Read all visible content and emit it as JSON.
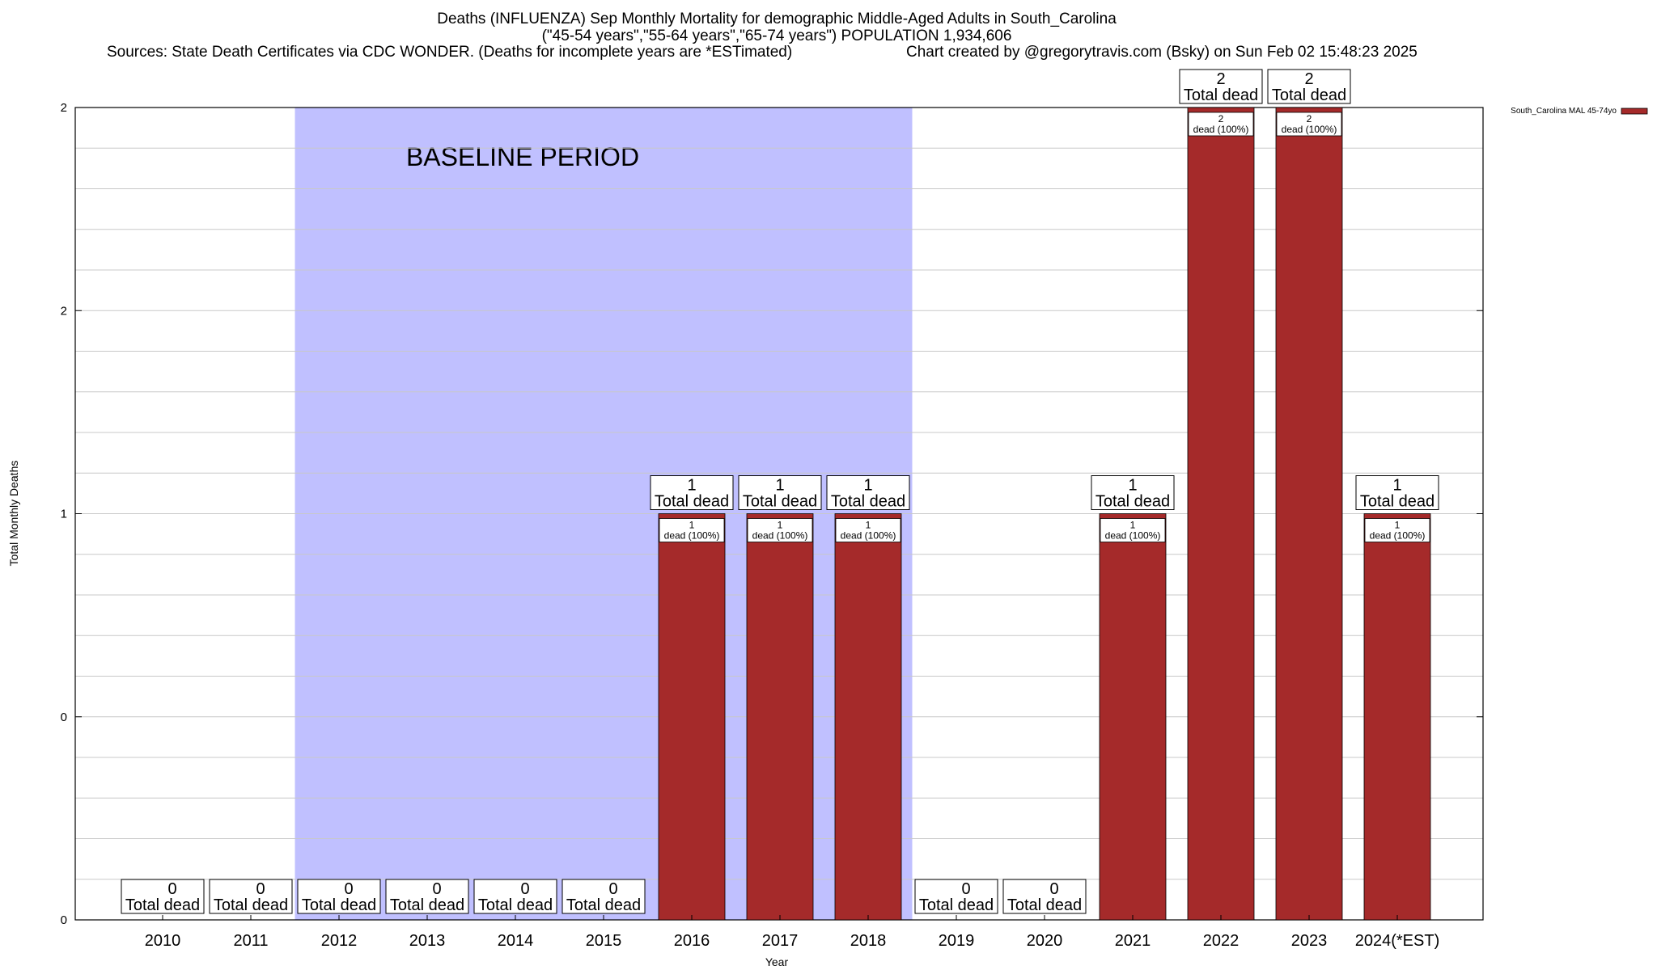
{
  "header": {
    "title_line1": "Deaths (INFLUENZA) Sep Monthly Mortality for demographic Middle-Aged Adults in South_Carolina",
    "title_line2": "(\"45-54 years\",\"55-64 years\",\"65-74 years\") POPULATION 1,934,606",
    "sources": "Sources: State Death Certificates via CDC WONDER. (Deaths for incomplete years are *ESTimated)",
    "credit": "Chart created by @gregorytravis.com (Bsky) on Sun Feb 02 15:48:23 2025"
  },
  "chart_data": {
    "type": "bar",
    "xlabel": "Year",
    "ylabel": "Total Monthly Deaths",
    "ylim": [
      0,
      2
    ],
    "y_tick_labels": [
      "0",
      "0",
      "1",
      "2",
      "2"
    ],
    "y_tick_values": [
      0,
      0.5,
      1,
      1.5,
      2
    ],
    "grid": true,
    "legend_position": "top-right",
    "categories": [
      "2010",
      "2011",
      "2012",
      "2013",
      "2014",
      "2015",
      "2016",
      "2017",
      "2018",
      "2019",
      "2020",
      "2021",
      "2022",
      "2023",
      "2024(*EST)"
    ],
    "series": [
      {
        "name": "South_Carolina MAL 45-74yo",
        "color": "#a52a2a",
        "values": [
          0,
          0,
          0,
          0,
          0,
          0,
          1,
          1,
          1,
          0,
          0,
          1,
          2,
          2,
          1
        ]
      }
    ],
    "total_label_word": "Total dead",
    "inner_label_text": "dead (100%)",
    "baseline_shading": {
      "label": "BASELINE PERIOD",
      "start_category": "2012",
      "end_category": "2019",
      "color": "#c0c0ff"
    }
  }
}
